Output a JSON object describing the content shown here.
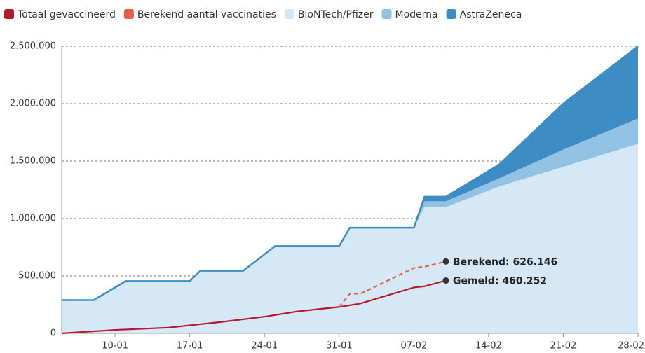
{
  "chart_data": {
    "type": "area",
    "x": [
      "05-01",
      "08-01",
      "11-01",
      "17-01",
      "18-01",
      "22-01",
      "25-01",
      "31-01",
      "01-02",
      "07-02",
      "08-02",
      "10-02",
      "15-02",
      "21-02",
      "28-02"
    ],
    "xlim": [
      "05-01",
      "28-02"
    ],
    "xticks": [
      "10-01",
      "17-01",
      "24-01",
      "31-01",
      "07-02",
      "14-02",
      "21-02",
      "28-02"
    ],
    "ylim": [
      0,
      2500000
    ],
    "yticks": [
      0,
      {
        "value": 500000,
        "label": "500.000"
      },
      {
        "value": 1000000,
        "label": "1.000.000"
      },
      {
        "value": 1500000,
        "label": "1.500.000"
      },
      {
        "value": 2000000,
        "label": "2.000.000"
      },
      {
        "value": 2500000,
        "label": "2.500.000"
      }
    ],
    "grid": true,
    "series": [
      {
        "name": "Totaal gevaccineerd",
        "color": "#b5172b",
        "kind": "line",
        "x": [
          "05-01",
          "10-01",
          "15-01",
          "20-01",
          "24-01",
          "27-01",
          "31-01",
          "02-02",
          "07-02",
          "08-02",
          "10-02"
        ],
        "values": [
          0,
          30000,
          50000,
          100000,
          145000,
          190000,
          230000,
          260000,
          400000,
          410000,
          460252
        ],
        "annotation": "Gemeld: 460.252"
      },
      {
        "name": "Berekend aantal vaccinaties",
        "color": "#e0604a",
        "kind": "line",
        "dashed": true,
        "x": [
          "31-01",
          "01-02",
          "02-02",
          "07-02",
          "08-02",
          "10-02"
        ],
        "values": [
          230000,
          345000,
          345000,
          570000,
          580000,
          626146
        ],
        "annotation": "Berekend: 626.146"
      },
      {
        "name": "BioNTech/Pfizer",
        "color": "#d6e8f5",
        "kind": "stack",
        "values": [
          290000,
          290000,
          455000,
          455000,
          545000,
          545000,
          760000,
          760000,
          920000,
          920000,
          1100000,
          1100000,
          1280000,
          1450000,
          1650000
        ]
      },
      {
        "name": "Moderna",
        "color": "#93c3e4",
        "kind": "stack",
        "values": [
          0,
          0,
          0,
          0,
          0,
          0,
          0,
          0,
          0,
          0,
          50000,
          50000,
          70000,
          150000,
          220000
        ]
      },
      {
        "name": "AstraZeneca",
        "color": "#3d8cc4",
        "kind": "stack",
        "values": [
          0,
          0,
          0,
          0,
          0,
          0,
          0,
          0,
          0,
          0,
          40000,
          40000,
          120000,
          400000,
          630000
        ]
      }
    ]
  }
}
